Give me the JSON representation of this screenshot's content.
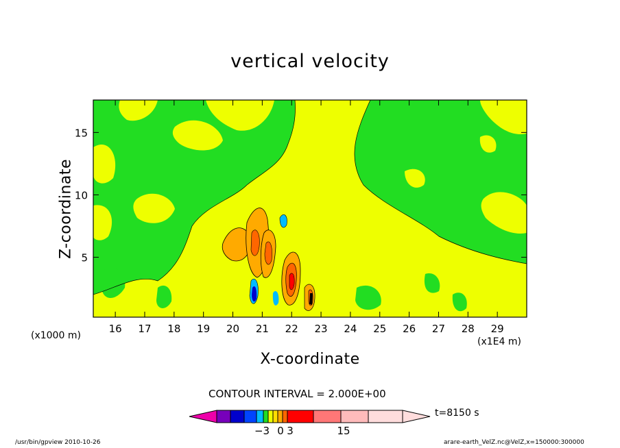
{
  "chart_data": {
    "type": "heatmap",
    "title": "vertical velocity",
    "xlabel": "X-coordinate",
    "ylabel": "Z-coordinate",
    "x_unit": "(x1E4 m)",
    "y_unit": "(x1000 m)",
    "xlim": [
      15.25,
      30.0
    ],
    "ylim": [
      0.2,
      17.6
    ],
    "x_ticks": [
      16,
      17,
      18,
      19,
      20,
      21,
      22,
      23,
      24,
      25,
      26,
      27,
      28,
      29
    ],
    "y_ticks": [
      5,
      10,
      15
    ],
    "contour_interval": "CONTOUR INTERVAL = 2.000E+00",
    "time_label": "t=8150 s",
    "colorbar": {
      "colors": [
        "#ee00aa",
        "#7700bb",
        "#0000cc",
        "#0044ff",
        "#00bbff",
        "#22dd22",
        "#eeff00",
        "#ffdd00",
        "#ffaa00",
        "#ff6600",
        "#ff0000",
        "#ff7777",
        "#ffbbbb",
        "#ffdddd"
      ],
      "tick_labels": [
        {
          "value": -3,
          "text": "−3"
        },
        {
          "value": 0,
          "text": "0"
        },
        {
          "value": 3,
          "text": "3"
        },
        {
          "value": 15,
          "text": "15"
        }
      ]
    },
    "features": [
      {
        "x": 20.9,
        "z": 6.5,
        "level": "positive"
      },
      {
        "x": 21.1,
        "z": 5.5,
        "level": "positive"
      },
      {
        "x": 21.85,
        "z": 3.3,
        "level": "positive"
      },
      {
        "x": 22.4,
        "z": 2.2,
        "level": "positive"
      },
      {
        "x": 20.6,
        "z": 1.8,
        "level": "negative"
      },
      {
        "x": 21.5,
        "z": 7.8,
        "level": "negative"
      }
    ]
  },
  "footer": {
    "left": "/usr/bin/gpview   2010-10-26",
    "right": "arare-earth_VelZ.nc@VelZ,x=150000:300000"
  }
}
